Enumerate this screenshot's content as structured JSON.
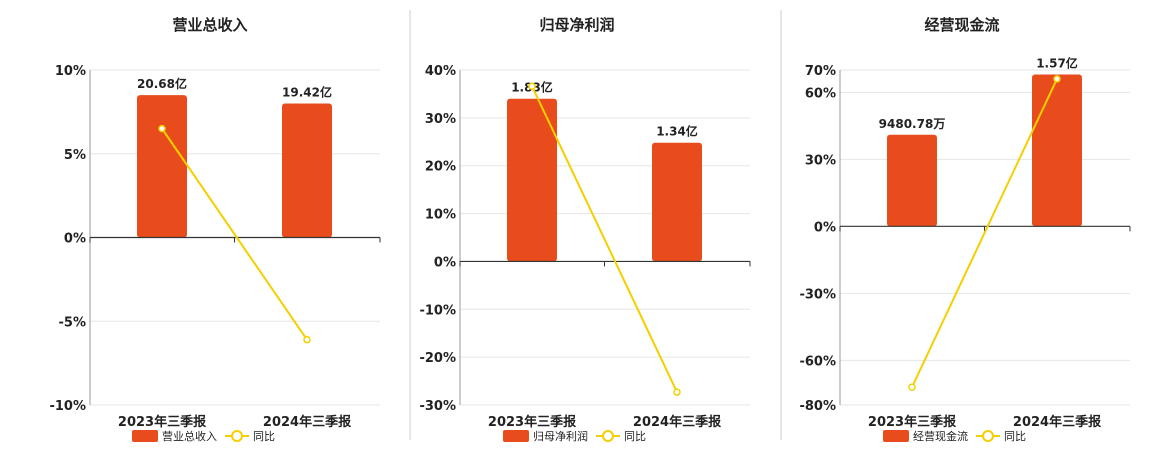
{
  "colors": {
    "bar": "#e84c1c",
    "line": "#f5cf00",
    "axis": "#333333",
    "grid": "#e6e6e6",
    "divider": "#cccccc",
    "text": "#222222"
  },
  "chart_data": [
    {
      "type": "bar",
      "title": "营业总收入",
      "categories": [
        "2023年三季报",
        "2024年三季报"
      ],
      "yoy_range": [
        -10,
        10
      ],
      "yoy_ticks": [
        -10,
        -5,
        0,
        5,
        10
      ],
      "tick_labels": [
        "-10%",
        "-5%",
        "0%",
        "5%",
        "10%"
      ],
      "series": [
        {
          "name": "营业总收入",
          "kind": "bar",
          "values": [
            20.68,
            19.42
          ],
          "unit": "亿",
          "labels": [
            "20.68亿",
            "19.42亿"
          ],
          "shown_height_pct": [
            8.5,
            8.0
          ]
        },
        {
          "name": "同比",
          "kind": "line",
          "values": [
            6.5,
            -6.1
          ],
          "unit": "%"
        }
      ],
      "legend": [
        "营业总收入",
        "同比"
      ],
      "legend_position": "bottom"
    },
    {
      "type": "bar",
      "title": "归母净利润",
      "categories": [
        "2023年三季报",
        "2024年三季报"
      ],
      "yoy_range": [
        -30,
        40
      ],
      "yoy_ticks": [
        -30,
        -20,
        -10,
        0,
        10,
        20,
        30,
        40
      ],
      "tick_labels": [
        "-30%",
        "-20%",
        "-10%",
        "0%",
        "10%",
        "20%",
        "30%",
        "40%"
      ],
      "series": [
        {
          "name": "归母净利润",
          "kind": "bar",
          "values": [
            1.83,
            1.34
          ],
          "unit": "亿",
          "labels": [
            "1.83亿",
            "1.34亿"
          ],
          "shown_height_pct": [
            34,
            24.8
          ]
        },
        {
          "name": "同比",
          "kind": "line",
          "values": [
            36.6,
            -27.3
          ],
          "unit": "%"
        }
      ],
      "legend": [
        "归母净利润",
        "同比"
      ],
      "legend_position": "bottom"
    },
    {
      "type": "bar",
      "title": "经营现金流",
      "categories": [
        "2023年三季报",
        "2024年三季报"
      ],
      "yoy_range": [
        -80,
        70
      ],
      "yoy_ticks": [
        -80,
        -60,
        -30,
        0,
        30,
        60,
        70
      ],
      "tick_labels": [
        "-80%",
        "-60%",
        "-30%",
        "0%",
        "30%",
        "60%",
        "70%"
      ],
      "series": [
        {
          "name": "经营现金流",
          "kind": "bar",
          "values": [
            0.948078,
            1.57
          ],
          "unit": "亿",
          "labels": [
            "9480.78万",
            "1.57亿"
          ],
          "shown_height_pct": [
            41,
            68
          ]
        },
        {
          "name": "同比",
          "kind": "line",
          "values": [
            -72,
            66
          ],
          "unit": "%"
        }
      ],
      "legend": [
        "经营现金流",
        "同比"
      ],
      "legend_position": "bottom"
    }
  ]
}
